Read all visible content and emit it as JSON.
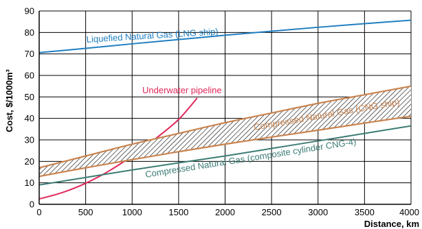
{
  "chart_data": {
    "type": "line",
    "xlabel": "Distance, km",
    "ylabel": "Cost, $/1000m³",
    "xlim": [
      0,
      4000
    ],
    "ylim": [
      0,
      90
    ],
    "xticks": [
      0,
      500,
      1000,
      1500,
      2000,
      2500,
      3000,
      3500,
      4000
    ],
    "yticks": [
      0,
      10,
      20,
      30,
      40,
      50,
      60,
      70,
      80,
      90
    ],
    "grid": true,
    "series": [
      {
        "name": "Liquefied Natural Gas (LNG ship)",
        "color": "#1f7fc1",
        "x": [
          0,
          500,
          1000,
          1500,
          2000,
          2500,
          3000,
          3500,
          4000
        ],
        "y": [
          70.6,
          72.6,
          74.7,
          76.7,
          78.7,
          80.6,
          82.4,
          84.1,
          85.7
        ]
      },
      {
        "name": "Underwater pipeline",
        "color": "#e0285a",
        "x": [
          0,
          250,
          500,
          750,
          1000,
          1250,
          1500,
          1700
        ],
        "y": [
          2.5,
          5.5,
          9.8,
          15.5,
          22.5,
          30.5,
          39.5,
          49.5
        ]
      },
      {
        "name": "Compressed Natural Gas (CNG ship)",
        "color": "#c9834e",
        "type": "band",
        "x": [
          0,
          500,
          1000,
          1500,
          2000,
          2500,
          3000,
          3500,
          4000
        ],
        "upper": [
          17.0,
          22.5,
          28.0,
          33.0,
          38.0,
          42.5,
          47.0,
          51.0,
          55.0
        ],
        "lower": [
          13.0,
          17.0,
          20.8,
          24.5,
          28.0,
          31.3,
          34.5,
          37.8,
          41.0
        ]
      },
      {
        "name": "Compressed Natural Gas (composite cylinder CNG-4)",
        "color": "#3c7c74",
        "x": [
          0,
          500,
          1000,
          1500,
          2000,
          2500,
          3000,
          3500,
          4000
        ],
        "y": [
          9.0,
          12.5,
          16.0,
          19.3,
          22.5,
          26.0,
          29.5,
          33.0,
          36.5
        ]
      }
    ]
  }
}
